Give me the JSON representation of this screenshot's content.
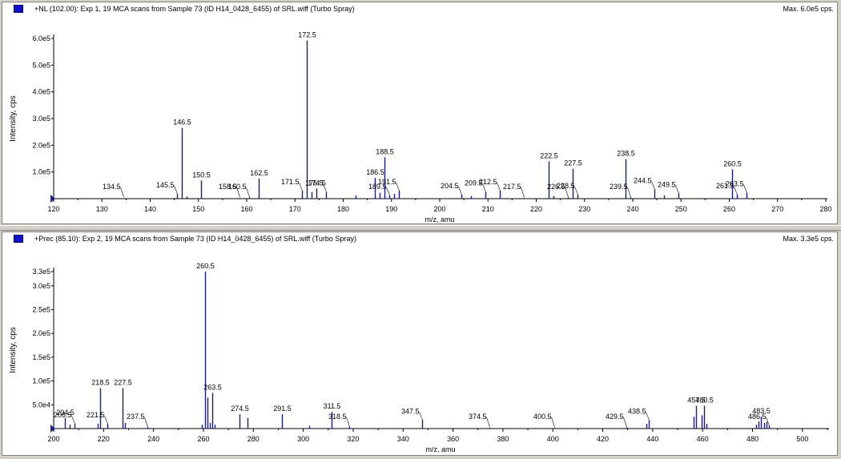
{
  "panes": [
    {
      "title": "+NL (102.00): Exp 1, 19 MCA scans from Sample 73 (ID H14_0428_6455) of SRL.wiff (Turbo Spray)",
      "max_label": "Max. 6.0e5 cps."
    },
    {
      "title": "+Prec (85.10): Exp 2, 19 MCA scans from Sample 73 (ID H14_0428_6455) of SRL.wiff (Turbo Spray)",
      "max_label": "Max. 3.3e5 cps."
    }
  ],
  "colors": {
    "peak": "#1a1a8c",
    "axis": "#000000",
    "marker": "#2020a0"
  },
  "chart_data": [
    {
      "type": "bar",
      "title": "+NL (102.00): Exp 1, 19 MCA scans from Sample 73 (ID H14_0428_6455) of SRL.wiff (Turbo Spray)",
      "xlabel": "m/z, amu",
      "ylabel": "Intensity, cps",
      "xlim": [
        120,
        280
      ],
      "ylim": [
        0,
        600000
      ],
      "x_ticks": [
        120,
        130,
        140,
        150,
        160,
        170,
        180,
        190,
        200,
        210,
        220,
        230,
        240,
        250,
        260,
        270,
        280
      ],
      "y_ticks": [
        {
          "value": 100000,
          "label": "1.0e5"
        },
        {
          "value": 200000,
          "label": "2.0e5"
        },
        {
          "value": 300000,
          "label": "3.0e5"
        },
        {
          "value": 400000,
          "label": "4.0e5"
        },
        {
          "value": 500000,
          "label": "5.0e5"
        },
        {
          "value": 600000,
          "label": "6.0e5"
        }
      ],
      "peaks": [
        {
          "mz": 134.5,
          "intensity": 2000,
          "label": "134.5"
        },
        {
          "mz": 145.5,
          "intensity": 18000,
          "label": "145.5"
        },
        {
          "mz": 146.5,
          "intensity": 265000,
          "label": "146.5"
        },
        {
          "mz": 147.5,
          "intensity": 8000,
          "label": ""
        },
        {
          "mz": 150.5,
          "intensity": 68000,
          "label": "150.5"
        },
        {
          "mz": 158.5,
          "intensity": 3000,
          "label": "158.5"
        },
        {
          "mz": 160.5,
          "intensity": 5000,
          "label": "160.5"
        },
        {
          "mz": 162.5,
          "intensity": 75000,
          "label": "162.5"
        },
        {
          "mz": 171.5,
          "intensity": 30000,
          "label": "171.5"
        },
        {
          "mz": 172.5,
          "intensity": 592000,
          "label": "172.5"
        },
        {
          "mz": 173.5,
          "intensity": 25000,
          "label": ""
        },
        {
          "mz": 174.5,
          "intensity": 38000,
          "label": "174.5"
        },
        {
          "mz": 176.5,
          "intensity": 25000,
          "label": "176.5"
        },
        {
          "mz": 182.5,
          "intensity": 12000,
          "label": ""
        },
        {
          "mz": 186.5,
          "intensity": 78000,
          "label": "186.5"
        },
        {
          "mz": 187.5,
          "intensity": 22000,
          "label": ""
        },
        {
          "mz": 188.5,
          "intensity": 155000,
          "label": "188.5"
        },
        {
          "mz": 189.5,
          "intensity": 12000,
          "label": "189.5"
        },
        {
          "mz": 190.5,
          "intensity": 18000,
          "label": ""
        },
        {
          "mz": 191.5,
          "intensity": 30000,
          "label": "191.5"
        },
        {
          "mz": 204.5,
          "intensity": 15000,
          "label": "204.5"
        },
        {
          "mz": 206.5,
          "intensity": 10000,
          "label": ""
        },
        {
          "mz": 209.5,
          "intensity": 25000,
          "label": "209.5"
        },
        {
          "mz": 212.5,
          "intensity": 30000,
          "label": "212.5"
        },
        {
          "mz": 217.5,
          "intensity": 3000,
          "label": "217.5"
        },
        {
          "mz": 222.5,
          "intensity": 140000,
          "label": "222.5"
        },
        {
          "mz": 223.5,
          "intensity": 10000,
          "label": ""
        },
        {
          "mz": 226.5,
          "intensity": 5000,
          "label": "226.5"
        },
        {
          "mz": 227.5,
          "intensity": 112000,
          "label": "227.5"
        },
        {
          "mz": 228.5,
          "intensity": 15000,
          "label": "228.5"
        },
        {
          "mz": 238.5,
          "intensity": 148000,
          "label": "238.5"
        },
        {
          "mz": 239.5,
          "intensity": 5000,
          "label": "239.5"
        },
        {
          "mz": 244.5,
          "intensity": 35000,
          "label": "244.5"
        },
        {
          "mz": 246.5,
          "intensity": 12000,
          "label": ""
        },
        {
          "mz": 249.5,
          "intensity": 20000,
          "label": "249.5"
        },
        {
          "mz": 260.5,
          "intensity": 110000,
          "label": "260.5"
        },
        {
          "mz": 261.5,
          "intensity": 15000,
          "label": "261.5"
        },
        {
          "mz": 263.5,
          "intensity": 22000,
          "label": "263.5"
        }
      ]
    },
    {
      "type": "bar",
      "title": "+Prec (85.10): Exp 2, 19 MCA scans from Sample 73 (ID H14_0428_6455) of SRL.wiff (Turbo Spray)",
      "xlabel": "m/z, amu",
      "ylabel": "Intensity, cps",
      "xlim": [
        200,
        510
      ],
      "ylim": [
        0,
        330000
      ],
      "x_ticks": [
        200,
        220,
        240,
        260,
        280,
        300,
        320,
        340,
        360,
        380,
        400,
        420,
        440,
        460,
        480,
        500
      ],
      "y_ticks": [
        {
          "value": 50000,
          "label": "5.0e4"
        },
        {
          "value": 100000,
          "label": "1.0e5"
        },
        {
          "value": 150000,
          "label": "1.5e5"
        },
        {
          "value": 200000,
          "label": "2.0e5"
        },
        {
          "value": 250000,
          "label": "2.5e5"
        },
        {
          "value": 300000,
          "label": "3.0e5"
        },
        {
          "value": 330000,
          "label": "3.3e5"
        }
      ],
      "peaks": [
        {
          "mz": 204.5,
          "intensity": 22000,
          "label": "204.5"
        },
        {
          "mz": 206.5,
          "intensity": 8000,
          "label": ""
        },
        {
          "mz": 208.5,
          "intensity": 10000,
          "label": "208.5"
        },
        {
          "mz": 217.5,
          "intensity": 10000,
          "label": ""
        },
        {
          "mz": 218.5,
          "intensity": 85000,
          "label": "218.5"
        },
        {
          "mz": 221.5,
          "intensity": 10000,
          "label": "221.5"
        },
        {
          "mz": 227.5,
          "intensity": 85000,
          "label": "227.5"
        },
        {
          "mz": 228.5,
          "intensity": 12000,
          "label": ""
        },
        {
          "mz": 237.5,
          "intensity": 3000,
          "label": "237.5"
        },
        {
          "mz": 259.5,
          "intensity": 8000,
          "label": ""
        },
        {
          "mz": 260.5,
          "intensity": 330000,
          "label": "260.5"
        },
        {
          "mz": 261.5,
          "intensity": 65000,
          "label": ""
        },
        {
          "mz": 262.5,
          "intensity": 12000,
          "label": ""
        },
        {
          "mz": 263.5,
          "intensity": 75000,
          "label": "263.5"
        },
        {
          "mz": 264.5,
          "intensity": 8000,
          "label": ""
        },
        {
          "mz": 274.5,
          "intensity": 30000,
          "label": "274.5"
        },
        {
          "mz": 277.5,
          "intensity": 22000,
          "label": ""
        },
        {
          "mz": 291.5,
          "intensity": 30000,
          "label": "291.5"
        },
        {
          "mz": 302.5,
          "intensity": 6000,
          "label": ""
        },
        {
          "mz": 311.5,
          "intensity": 35000,
          "label": "311.5"
        },
        {
          "mz": 318.5,
          "intensity": 4000,
          "label": "318.5"
        },
        {
          "mz": 347.5,
          "intensity": 18000,
          "label": "347.5"
        },
        {
          "mz": 374.5,
          "intensity": 2000,
          "label": "374.5"
        },
        {
          "mz": 400.5,
          "intensity": 2000,
          "label": "400.5"
        },
        {
          "mz": 429.5,
          "intensity": 3000,
          "label": "429.5"
        },
        {
          "mz": 437.5,
          "intensity": 10000,
          "label": ""
        },
        {
          "mz": 438.5,
          "intensity": 18000,
          "label": "438.5"
        },
        {
          "mz": 456.5,
          "intensity": 25000,
          "label": ""
        },
        {
          "mz": 457.5,
          "intensity": 48000,
          "label": "457.5"
        },
        {
          "mz": 459.5,
          "intensity": 28000,
          "label": ""
        },
        {
          "mz": 460.5,
          "intensity": 48000,
          "label": "460.5"
        },
        {
          "mz": 461.5,
          "intensity": 10000,
          "label": ""
        },
        {
          "mz": 481.5,
          "intensity": 8000,
          "label": ""
        },
        {
          "mz": 482.5,
          "intensity": 15000,
          "label": ""
        },
        {
          "mz": 483.5,
          "intensity": 25000,
          "label": "483.5"
        },
        {
          "mz": 484.5,
          "intensity": 12000,
          "label": ""
        },
        {
          "mz": 485.5,
          "intensity": 14000,
          "label": ""
        },
        {
          "mz": 486.5,
          "intensity": 6000,
          "label": "486.5"
        }
      ]
    }
  ]
}
